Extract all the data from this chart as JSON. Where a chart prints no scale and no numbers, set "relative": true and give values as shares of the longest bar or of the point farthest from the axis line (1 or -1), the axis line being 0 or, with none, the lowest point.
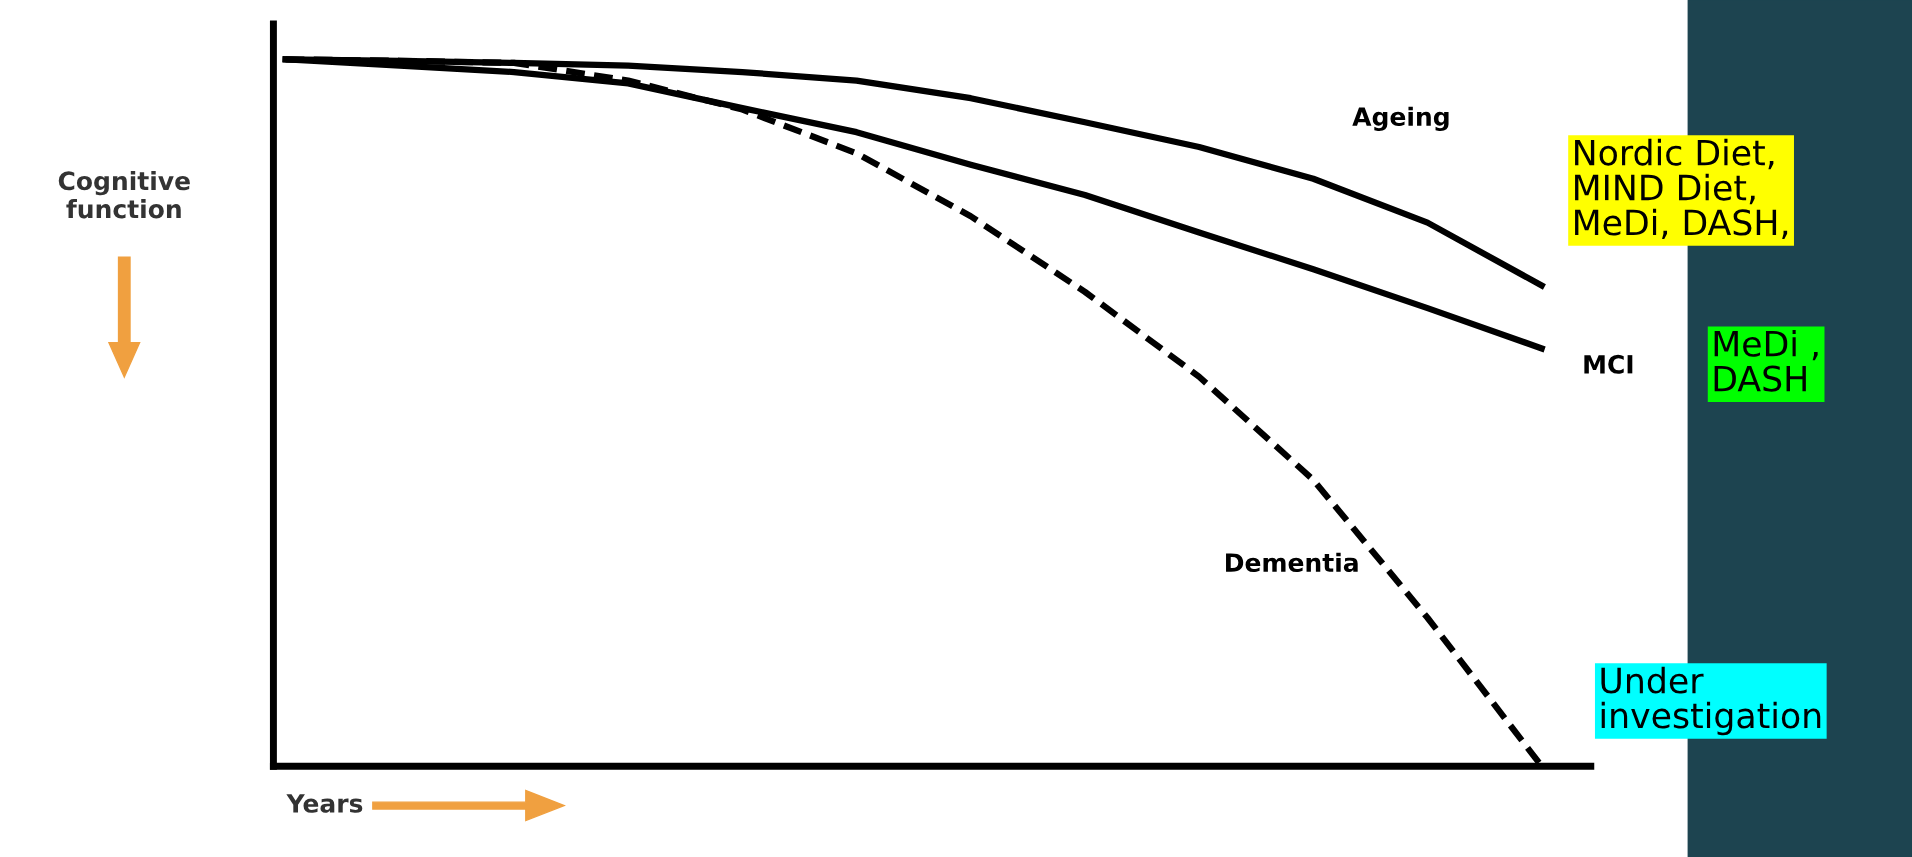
{
  "chart_data": {
    "type": "line",
    "relative": true,
    "xlabel": "Years",
    "ylabel": "Cognitive\nfunction",
    "grid": false,
    "marker": "none",
    "categories": [
      null,
      null,
      null,
      null,
      null,
      null,
      null,
      null,
      null,
      null,
      null,
      null
    ],
    "series": [
      {
        "name": "Ageing",
        "color": "#000000",
        "line_style": "solid",
        "values": [
          1,
          0.998,
          0.995,
          0.991,
          0.982,
          0.97,
          0.945,
          0.911,
          0.876,
          0.831,
          0.769,
          0.68
        ]
      },
      {
        "name": "MCI",
        "color": "#000000",
        "line_style": "solid",
        "values": [
          1,
          0.991,
          0.982,
          0.966,
          0.931,
          0.897,
          0.851,
          0.808,
          0.755,
          0.703,
          0.648,
          0.591
        ]
      },
      {
        "name": "Dementia",
        "color": "#000000",
        "line_style": "dashed",
        "values": [
          1,
          0.998,
          0.995,
          0.97,
          0.929,
          0.867,
          0.778,
          0.671,
          0.551,
          0.405,
          0.21,
          0
        ]
      }
    ],
    "annotations": [
      "Nordic Diet,\nMIND Diet,\nMeDi, DASH,",
      "MeDi ,\nDASH",
      "Under\ninvestigation"
    ]
  }
}
